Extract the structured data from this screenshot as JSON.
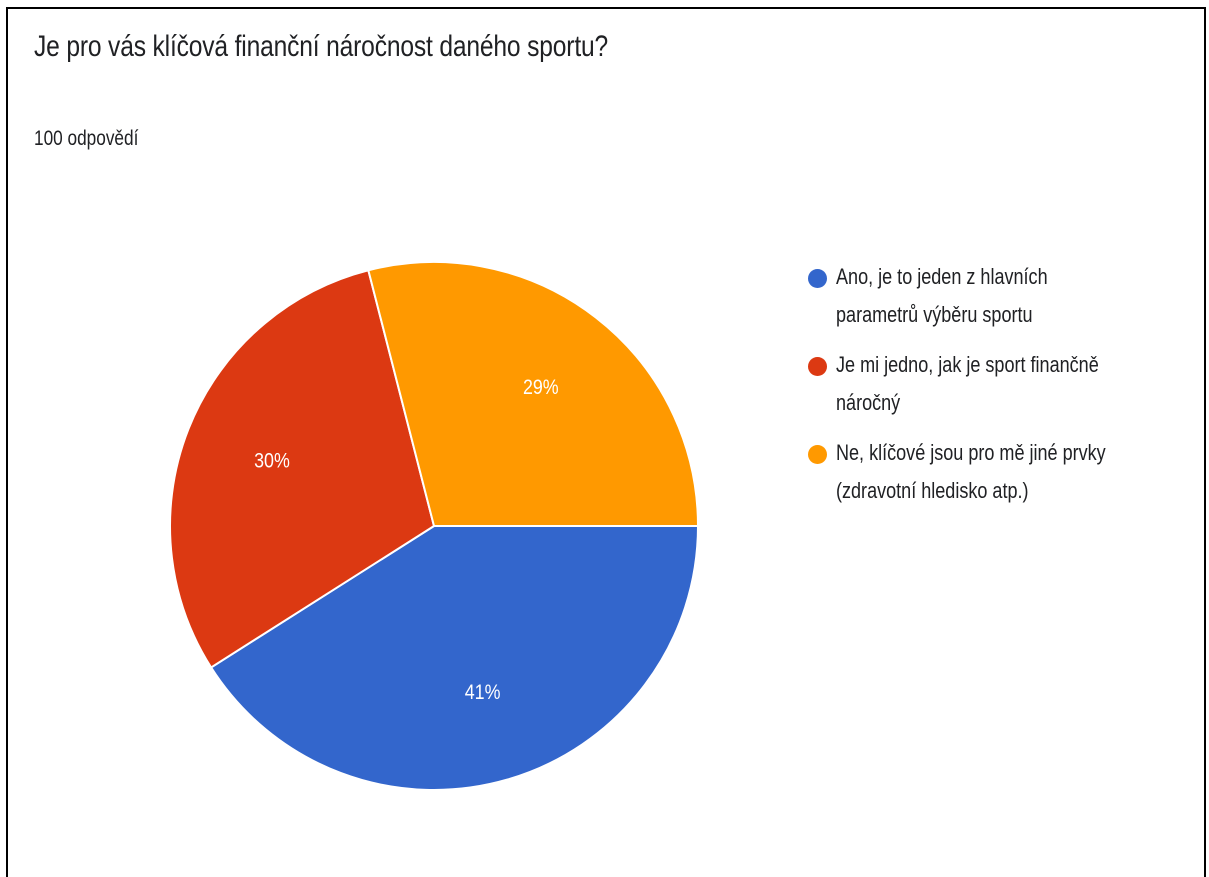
{
  "title": "Je pro vás klíčová finanční náročnost daného sportu?",
  "subtitle": "100 odpovědí",
  "chart_data": {
    "type": "pie",
    "title": "Je pro vás klíčová finanční náročnost daného sportu?",
    "subtitle": "100 odpovědí",
    "legend_position": "right",
    "slices": [
      {
        "label": "Ano, je to jeden z hlavních parametrů výběru sportu",
        "value": 41,
        "display": "41%",
        "color": "#3366cc"
      },
      {
        "label": "Je mi jedno, jak je sport finančně náročný",
        "value": 30,
        "display": "30%",
        "color": "#dc3912"
      },
      {
        "label": "Ne, klíčové jsou pro mě jiné prvky (zdravotní hledisko atp.)",
        "value": 29,
        "display": "29%",
        "color": "#ff9900"
      }
    ]
  }
}
